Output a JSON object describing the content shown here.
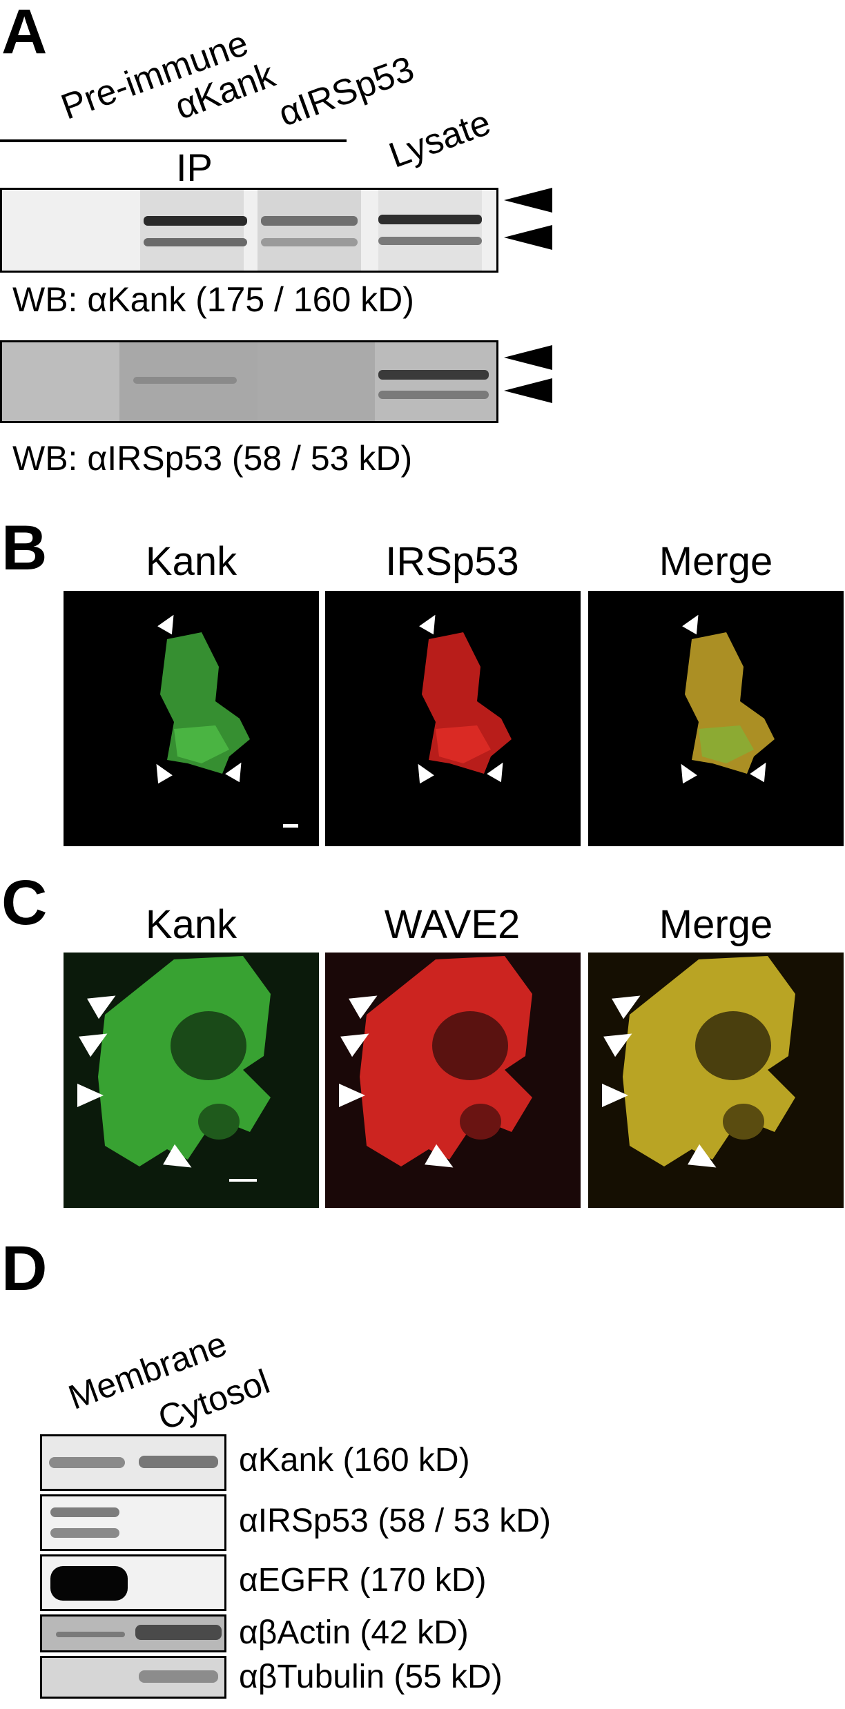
{
  "panel_a": {
    "letter": "A",
    "lanes": [
      "Pre-immune",
      "αKank",
      "αIRSp53",
      "Lysate"
    ],
    "ip_label": "IP",
    "blot1_label": "WB: αKank (175 / 160 kD)",
    "blot2_label": "WB: αIRSp53 (58 / 53 kD)"
  },
  "panel_b": {
    "letter": "B",
    "columns": [
      "Kank",
      "IRSp53",
      "Merge"
    ]
  },
  "panel_c": {
    "letter": "C",
    "columns": [
      "Kank",
      "WAVE2",
      "Merge"
    ]
  },
  "panel_d": {
    "letter": "D",
    "lanes": [
      "Membrane",
      "Cytosol"
    ],
    "rows": [
      "αKank (160 kD)",
      "αIRSp53 (58 / 53 kD)",
      "αEGFR (170 kD)",
      "αβActin (42 kD)",
      "αβTubulin (55 kD)"
    ]
  },
  "colors": {
    "green_channel": "#3fa83a",
    "red_channel": "#d8221e",
    "merge_channel": "#c9a82a"
  }
}
